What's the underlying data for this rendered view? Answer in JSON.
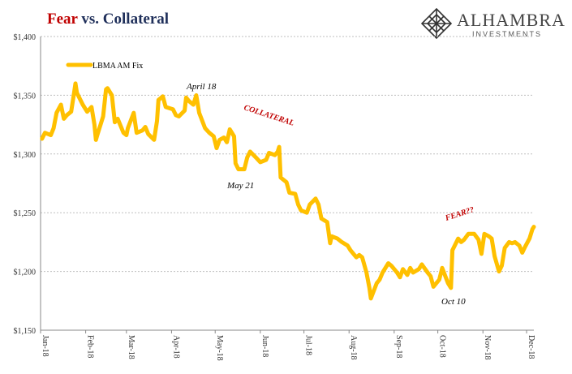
{
  "title": {
    "part1": "Fear",
    "part2": "vs. Collateral"
  },
  "logo": {
    "brand": "ALHAMBRA",
    "sub": "INVESTMENTS",
    "icon": "diamond-lattice-icon"
  },
  "colors": {
    "series": "#FFC000",
    "annotation_red": "#c00000",
    "grid": "#bfbfbf",
    "title_blue": "#1f2f5a"
  },
  "chart_data": {
    "type": "line",
    "ylim": [
      1150,
      1400
    ],
    "grid": true,
    "legend": "top-left",
    "y_ticks": [
      {
        "value": 1150,
        "label": "$1,150"
      },
      {
        "value": 1200,
        "label": "$1,200"
      },
      {
        "value": 1250,
        "label": "$1,250"
      },
      {
        "value": 1300,
        "label": "$1,300"
      },
      {
        "value": 1350,
        "label": "$1,350"
      },
      {
        "value": 1400,
        "label": "$1,400"
      }
    ],
    "x_ticks": [
      "Jan-18",
      "Feb-18",
      "Mar-18",
      "Apr-18",
      "May-18",
      "Jun-18",
      "Jul-18",
      "Aug-18",
      "Sep-18",
      "Oct-18",
      "Nov-18",
      "Dec-18"
    ],
    "series": [
      {
        "name": "LBMA AM Fix",
        "points": [
          [
            "2018-01-02",
            1313
          ],
          [
            "2018-01-04",
            1318
          ],
          [
            "2018-01-08",
            1316
          ],
          [
            "2018-01-10",
            1322
          ],
          [
            "2018-01-12",
            1335
          ],
          [
            "2018-01-15",
            1342
          ],
          [
            "2018-01-17",
            1330
          ],
          [
            "2018-01-19",
            1333
          ],
          [
            "2018-01-22",
            1336
          ],
          [
            "2018-01-24",
            1352
          ],
          [
            "2018-01-25",
            1360
          ],
          [
            "2018-01-26",
            1352
          ],
          [
            "2018-01-30",
            1342
          ],
          [
            "2018-02-02",
            1336
          ],
          [
            "2018-02-05",
            1340
          ],
          [
            "2018-02-07",
            1325
          ],
          [
            "2018-02-08",
            1312
          ],
          [
            "2018-02-09",
            1316
          ],
          [
            "2018-02-13",
            1332
          ],
          [
            "2018-02-15",
            1355
          ],
          [
            "2018-02-16",
            1356
          ],
          [
            "2018-02-19",
            1350
          ],
          [
            "2018-02-21",
            1327
          ],
          [
            "2018-02-23",
            1330
          ],
          [
            "2018-02-27",
            1318
          ],
          [
            "2018-03-01",
            1316
          ],
          [
            "2018-03-02",
            1322
          ],
          [
            "2018-03-06",
            1335
          ],
          [
            "2018-03-08",
            1318
          ],
          [
            "2018-03-12",
            1320
          ],
          [
            "2018-03-14",
            1323
          ],
          [
            "2018-03-16",
            1317
          ],
          [
            "2018-03-20",
            1312
          ],
          [
            "2018-03-22",
            1328
          ],
          [
            "2018-03-23",
            1346
          ],
          [
            "2018-03-26",
            1349
          ],
          [
            "2018-03-28",
            1340
          ],
          [
            "2018-04-02",
            1338
          ],
          [
            "2018-04-04",
            1333
          ],
          [
            "2018-04-06",
            1332
          ],
          [
            "2018-04-10",
            1337
          ],
          [
            "2018-04-11",
            1348
          ],
          [
            "2018-04-13",
            1345
          ],
          [
            "2018-04-16",
            1342
          ],
          [
            "2018-04-18",
            1350
          ],
          [
            "2018-04-20",
            1335
          ],
          [
            "2018-04-24",
            1322
          ],
          [
            "2018-04-27",
            1318
          ],
          [
            "2018-04-30",
            1315
          ],
          [
            "2018-05-02",
            1305
          ],
          [
            "2018-05-04",
            1312
          ],
          [
            "2018-05-07",
            1314
          ],
          [
            "2018-05-09",
            1310
          ],
          [
            "2018-05-11",
            1321
          ],
          [
            "2018-05-14",
            1315
          ],
          [
            "2018-05-15",
            1292
          ],
          [
            "2018-05-17",
            1287
          ],
          [
            "2018-05-21",
            1287
          ],
          [
            "2018-05-23",
            1297
          ],
          [
            "2018-05-25",
            1302
          ],
          [
            "2018-05-29",
            1297
          ],
          [
            "2018-06-01",
            1293
          ],
          [
            "2018-06-05",
            1295
          ],
          [
            "2018-06-07",
            1301
          ],
          [
            "2018-06-11",
            1299
          ],
          [
            "2018-06-13",
            1302
          ],
          [
            "2018-06-14",
            1306
          ],
          [
            "2018-06-15",
            1280
          ],
          [
            "2018-06-19",
            1276
          ],
          [
            "2018-06-21",
            1267
          ],
          [
            "2018-06-25",
            1266
          ],
          [
            "2018-06-27",
            1257
          ],
          [
            "2018-06-29",
            1252
          ],
          [
            "2018-07-03",
            1250
          ],
          [
            "2018-07-05",
            1257
          ],
          [
            "2018-07-09",
            1262
          ],
          [
            "2018-07-11",
            1257
          ],
          [
            "2018-07-13",
            1245
          ],
          [
            "2018-07-17",
            1242
          ],
          [
            "2018-07-19",
            1224
          ],
          [
            "2018-07-20",
            1230
          ],
          [
            "2018-07-24",
            1228
          ],
          [
            "2018-07-27",
            1225
          ],
          [
            "2018-07-31",
            1222
          ],
          [
            "2018-08-02",
            1218
          ],
          [
            "2018-08-06",
            1212
          ],
          [
            "2018-08-08",
            1214
          ],
          [
            "2018-08-10",
            1212
          ],
          [
            "2018-08-13",
            1199
          ],
          [
            "2018-08-15",
            1186
          ],
          [
            "2018-08-16",
            1177
          ],
          [
            "2018-08-20",
            1190
          ],
          [
            "2018-08-22",
            1193
          ],
          [
            "2018-08-24",
            1199
          ],
          [
            "2018-08-28",
            1207
          ],
          [
            "2018-08-30",
            1205
          ],
          [
            "2018-09-03",
            1199
          ],
          [
            "2018-09-05",
            1195
          ],
          [
            "2018-09-07",
            1202
          ],
          [
            "2018-09-10",
            1197
          ],
          [
            "2018-09-12",
            1203
          ],
          [
            "2018-09-14",
            1199
          ],
          [
            "2018-09-18",
            1202
          ],
          [
            "2018-09-20",
            1206
          ],
          [
            "2018-09-24",
            1199
          ],
          [
            "2018-09-26",
            1196
          ],
          [
            "2018-09-28",
            1187
          ],
          [
            "2018-10-02",
            1193
          ],
          [
            "2018-10-04",
            1203
          ],
          [
            "2018-10-08",
            1190
          ],
          [
            "2018-10-10",
            1186
          ],
          [
            "2018-10-11",
            1218
          ],
          [
            "2018-10-15",
            1228
          ],
          [
            "2018-10-17",
            1225
          ],
          [
            "2018-10-19",
            1227
          ],
          [
            "2018-10-22",
            1232
          ],
          [
            "2018-10-24",
            1232
          ],
          [
            "2018-10-26",
            1232
          ],
          [
            "2018-10-29",
            1227
          ],
          [
            "2018-10-31",
            1215
          ],
          [
            "2018-11-02",
            1232
          ],
          [
            "2018-11-05",
            1230
          ],
          [
            "2018-11-07",
            1228
          ],
          [
            "2018-11-09",
            1213
          ],
          [
            "2018-11-12",
            1200
          ],
          [
            "2018-11-14",
            1205
          ],
          [
            "2018-11-16",
            1220
          ],
          [
            "2018-11-19",
            1225
          ],
          [
            "2018-11-21",
            1224
          ],
          [
            "2018-11-23",
            1225
          ],
          [
            "2018-11-26",
            1222
          ],
          [
            "2018-11-28",
            1216
          ],
          [
            "2018-11-30",
            1221
          ],
          [
            "2018-12-03",
            1228
          ],
          [
            "2018-12-05",
            1236
          ],
          [
            "2018-12-06",
            1238
          ]
        ]
      }
    ],
    "annotations": [
      {
        "text": "April 18",
        "style": "date"
      },
      {
        "text": "May 21",
        "style": "date"
      },
      {
        "text": "COLLATERAL",
        "style": "red"
      },
      {
        "text": "FEAR??",
        "style": "red"
      },
      {
        "text": "Oct 10",
        "style": "date"
      }
    ]
  }
}
